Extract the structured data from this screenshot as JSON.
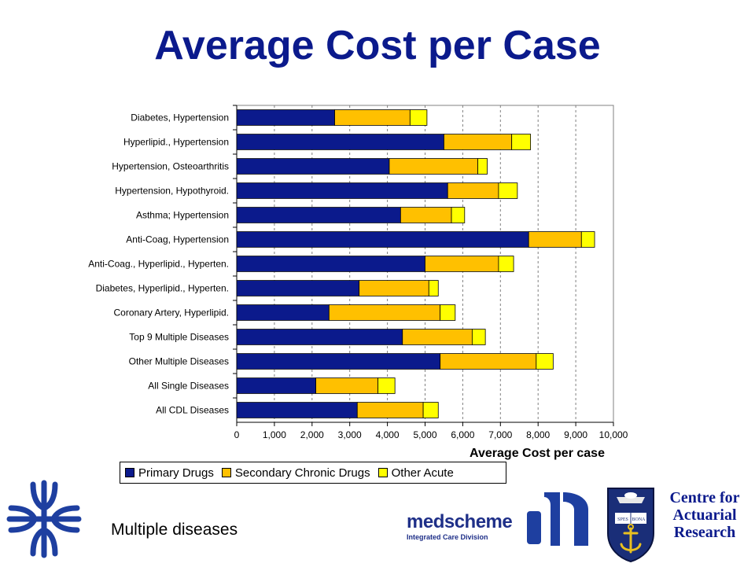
{
  "title": "Average Cost per Case",
  "caption": "Multiple diseases",
  "centre": {
    "line1": "Centre for",
    "line2": "Actuarial",
    "line3": "Research"
  },
  "medscheme": {
    "name": "medscheme",
    "division": "Integrated Care Division"
  },
  "crest": {
    "motto_left": "SPES",
    "motto_right": "BONA"
  },
  "colors": {
    "title": "#0B1A8C",
    "primary": "#0B1A8C",
    "secondary": "#FFC000",
    "other": "#FFFF00"
  },
  "chart_data": {
    "type": "bar",
    "orientation": "horizontal",
    "stacked": true,
    "categories": [
      "Diabetes, Hypertension",
      "Hyperlipid., Hypertension",
      "Hypertension, Osteoarthritis",
      "Hypertension, Hypothyroid.",
      "Asthma; Hypertension",
      "Anti-Coag, Hypertension",
      "Anti-Coag., Hyperlipid., Hyperten.",
      "Diabetes, Hyperlipid., Hyperten.",
      "Coronary Artery, Hyperlipid.",
      "Top 9 Multiple Diseases",
      "Other Multiple Diseases",
      "All Single Diseases",
      "All CDL Diseases"
    ],
    "series": [
      {
        "name": "Primary Drugs",
        "color": "#0B1A8C",
        "values": [
          2600,
          5500,
          4050,
          5600,
          4350,
          7750,
          5000,
          3250,
          2450,
          4400,
          5400,
          2100,
          3200
        ]
      },
      {
        "name": "Secondary Chronic Drugs",
        "color": "#FFC000",
        "values": [
          2000,
          1800,
          2350,
          1350,
          1350,
          1400,
          1950,
          1850,
          2950,
          1850,
          2550,
          1650,
          1750
        ]
      },
      {
        "name": "Other Acute",
        "color": "#FFFF00",
        "values": [
          450,
          500,
          250,
          500,
          350,
          350,
          400,
          250,
          400,
          350,
          450,
          450,
          400
        ]
      }
    ],
    "xlabel": "Average Cost per case",
    "xlim": [
      0,
      10000
    ],
    "xticks": [
      0,
      1000,
      2000,
      3000,
      4000,
      5000,
      6000,
      7000,
      8000,
      9000,
      10000
    ],
    "xtick_labels": [
      "0",
      "1,000",
      "2,000",
      "3,000",
      "4,000",
      "5,000",
      "6,000",
      "7,000",
      "8,000",
      "9,000",
      "10,000"
    ],
    "grid": "vertical dashed",
    "legend_position": "bottom"
  }
}
